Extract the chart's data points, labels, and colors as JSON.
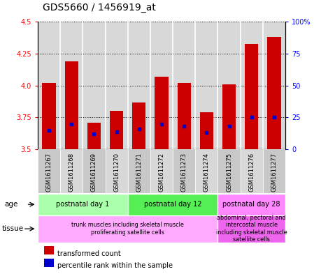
{
  "title": "GDS5660 / 1456919_at",
  "samples": [
    "GSM1611267",
    "GSM1611268",
    "GSM1611269",
    "GSM1611270",
    "GSM1611271",
    "GSM1611272",
    "GSM1611273",
    "GSM1611274",
    "GSM1611275",
    "GSM1611276",
    "GSM1611277"
  ],
  "transformed_counts": [
    4.02,
    4.19,
    3.71,
    3.8,
    3.87,
    4.07,
    4.02,
    3.79,
    4.01,
    4.33,
    4.38
  ],
  "percentile_ranks": [
    15,
    20,
    12,
    14,
    16,
    20,
    18,
    13,
    18,
    25,
    25
  ],
  "ymin": 3.5,
  "ymax": 4.5,
  "yticks_left": [
    3.5,
    3.75,
    4.0,
    4.25,
    4.5
  ],
  "yticks_right": [
    0,
    25,
    50,
    75,
    100
  ],
  "bar_color": "#cc0000",
  "percentile_color": "#0000cc",
  "bg_color": "#ffffff",
  "plot_bg_color": "#d8d8d8",
  "age_groups": [
    {
      "label": "postnatal day 1",
      "start": 0,
      "end": 4,
      "color": "#aaffaa"
    },
    {
      "label": "postnatal day 12",
      "start": 4,
      "end": 8,
      "color": "#55ee55"
    },
    {
      "label": "postnatal day 28",
      "start": 8,
      "end": 11,
      "color": "#ff88ff"
    }
  ],
  "tissue_groups": [
    {
      "label": "trunk muscles including skeletal muscle\nproliferating satellite cells",
      "start": 0,
      "end": 8,
      "color": "#ffaaff"
    },
    {
      "label": "abdominal, pectoral and\nintercostal muscle\nincluding skeletal muscle\nsatellite cells",
      "start": 8,
      "end": 11,
      "color": "#ee66ee"
    }
  ],
  "legend_red": "transformed count",
  "legend_blue": "percentile rank within the sample",
  "xlabel_age": "age",
  "xlabel_tissue": "tissue",
  "bar_width": 0.6,
  "tick_fontsize": 7,
  "title_fontsize": 10
}
